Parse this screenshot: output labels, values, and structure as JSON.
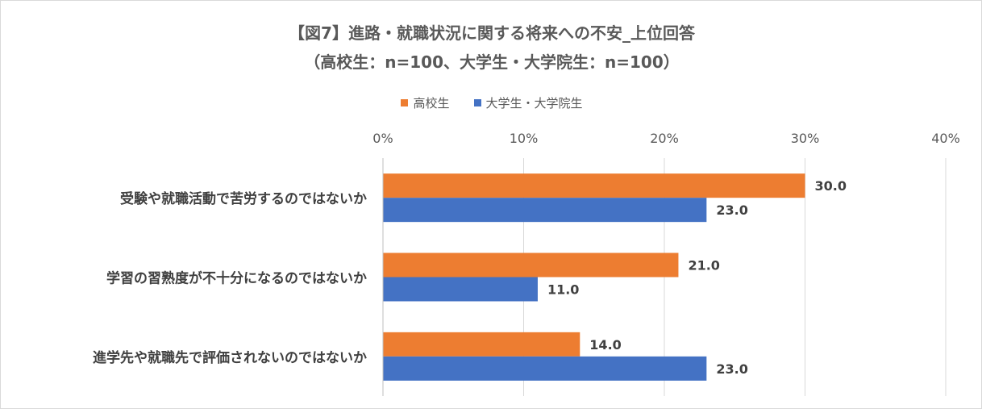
{
  "title_line1": "【図7】進路・就職状況に関する将来への不安_上位回答",
  "title_line2": "（高校生：n=100、大学生・大学院生：n=100）",
  "chart_data": {
    "type": "bar",
    "orientation": "horizontal",
    "categories": [
      "受験や就職活動で苦労するのではないか",
      "学習の習熟度が不十分になるのではないか",
      "進学先や就職先で評価されないのではないか"
    ],
    "series": [
      {
        "name": "高校生",
        "color": "#ED7D31",
        "values": [
          30.0,
          21.0,
          14.0
        ],
        "labels": [
          "30.0",
          "21.0",
          "14.0"
        ]
      },
      {
        "name": "大学生・大学院生",
        "color": "#4472C4",
        "values": [
          23.0,
          11.0,
          23.0
        ],
        "labels": [
          "23.0",
          "11.0",
          "23.0"
        ]
      }
    ],
    "xlim": [
      0,
      40
    ],
    "xticks": [
      0,
      10,
      20,
      30,
      40
    ],
    "xtick_labels": [
      "0%",
      "10%",
      "20%",
      "30%",
      "40%"
    ],
    "x_axis_position": "top",
    "grid": true,
    "legend_position": "top"
  }
}
